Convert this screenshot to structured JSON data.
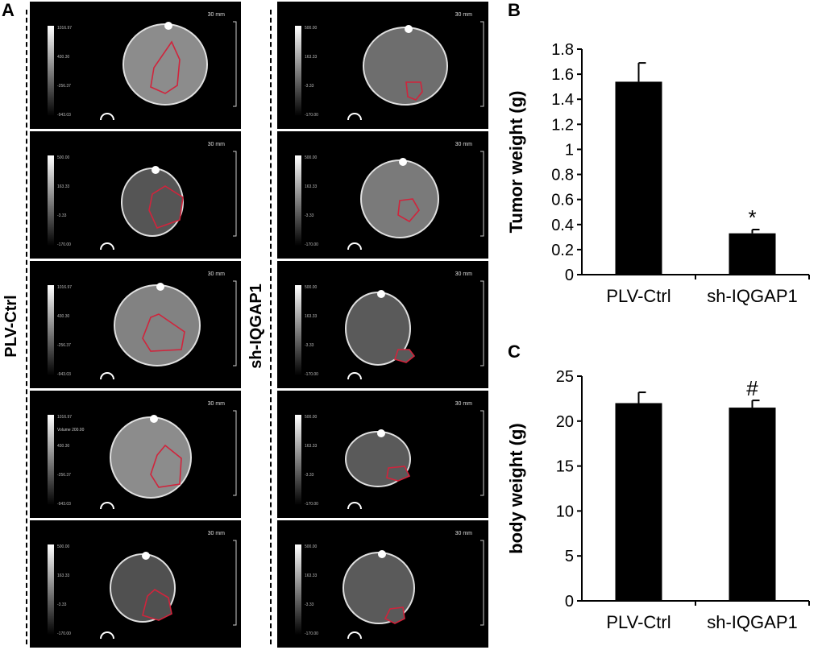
{
  "panels": {
    "A": {
      "letter": "A",
      "groups": [
        "PLV-Ctrl",
        "sh-IQGAP1"
      ],
      "scale_bar": "30 mm",
      "volume_label": "Volume 200.00",
      "colorbar_ticks": [
        [
          "1016.97",
          "430.30",
          "-256.37",
          "-943.03"
        ],
        [
          "500.00",
          "163.33",
          "-3.33",
          "-170.00"
        ]
      ]
    },
    "B": {
      "letter": "B"
    },
    "C": {
      "letter": "C"
    }
  },
  "chart_data": [
    {
      "id": "B",
      "type": "bar",
      "categories": [
        "PLV-Ctrl",
        "sh-IQGAP1"
      ],
      "values": [
        1.54,
        0.33
      ],
      "errors": [
        0.15,
        0.03
      ],
      "annotations": [
        "",
        "*"
      ],
      "title": "",
      "xlabel": "",
      "ylabel": "Tumor weight (g)",
      "ylim": [
        0,
        1.8
      ],
      "yticks": [
        "0",
        "0.2",
        "0.4",
        "0.6",
        "0.8",
        "1",
        "1.2",
        "1.4",
        "1.6",
        "1.8"
      ],
      "bar_color": "#000000"
    },
    {
      "id": "C",
      "type": "bar",
      "categories": [
        "PLV-Ctrl",
        "sh-IQGAP1"
      ],
      "values": [
        22.0,
        21.5
      ],
      "errors": [
        1.2,
        0.8
      ],
      "annotations": [
        "",
        "#"
      ],
      "title": "",
      "xlabel": "",
      "ylabel": "body weight (g)",
      "ylim": [
        0,
        25
      ],
      "yticks": [
        "0",
        "5",
        "10",
        "15",
        "20",
        "25"
      ],
      "bar_color": "#000000"
    }
  ]
}
